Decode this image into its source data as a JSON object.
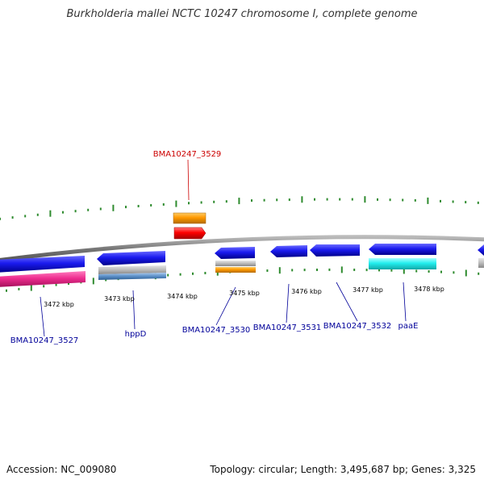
{
  "title": "Burkholderia mallei NCTC 10247 chromosome I, complete genome",
  "accession": "Accession: NC_009080",
  "topology": "Topology: circular; Length: 3,495,687 bp; Genes: 3,325",
  "scale_labels": [
    "3472 kbp",
    "3473 kbp",
    "3474 kbp",
    "3475 kbp",
    "3476 kbp",
    "3477 kbp",
    "3478 kbp"
  ],
  "gene_labels": [
    {
      "name": "gene-label-bma10247-3529",
      "text": "BMA10247_3529",
      "color": "#cc0000"
    },
    {
      "name": "gene-label-bma10247-3527",
      "text": "BMA10247_3527",
      "color": "#000099"
    },
    {
      "name": "gene-label-hppd",
      "text": "hppD",
      "color": "#000099"
    },
    {
      "name": "gene-label-bma10247-3530",
      "text": "BMA10247_3530",
      "color": "#000099"
    },
    {
      "name": "gene-label-bma10247-3531",
      "text": "BMA10247_3531",
      "color": "#000099"
    },
    {
      "name": "gene-label-bma10247-3532",
      "text": "BMA10247_3532",
      "color": "#000099"
    },
    {
      "name": "gene-label-paae",
      "text": "paaE",
      "color": "#000099"
    }
  ],
  "colors": {
    "backbone": "#888888",
    "tick": "#2e8b2e",
    "cds": "#1a1aee",
    "pink": "#ee2d8f",
    "orange": "#ff9900",
    "red": "#ff0000",
    "cyan": "#22eeee",
    "gray": "#bbbbbb",
    "steel": "#5b8fc7"
  }
}
